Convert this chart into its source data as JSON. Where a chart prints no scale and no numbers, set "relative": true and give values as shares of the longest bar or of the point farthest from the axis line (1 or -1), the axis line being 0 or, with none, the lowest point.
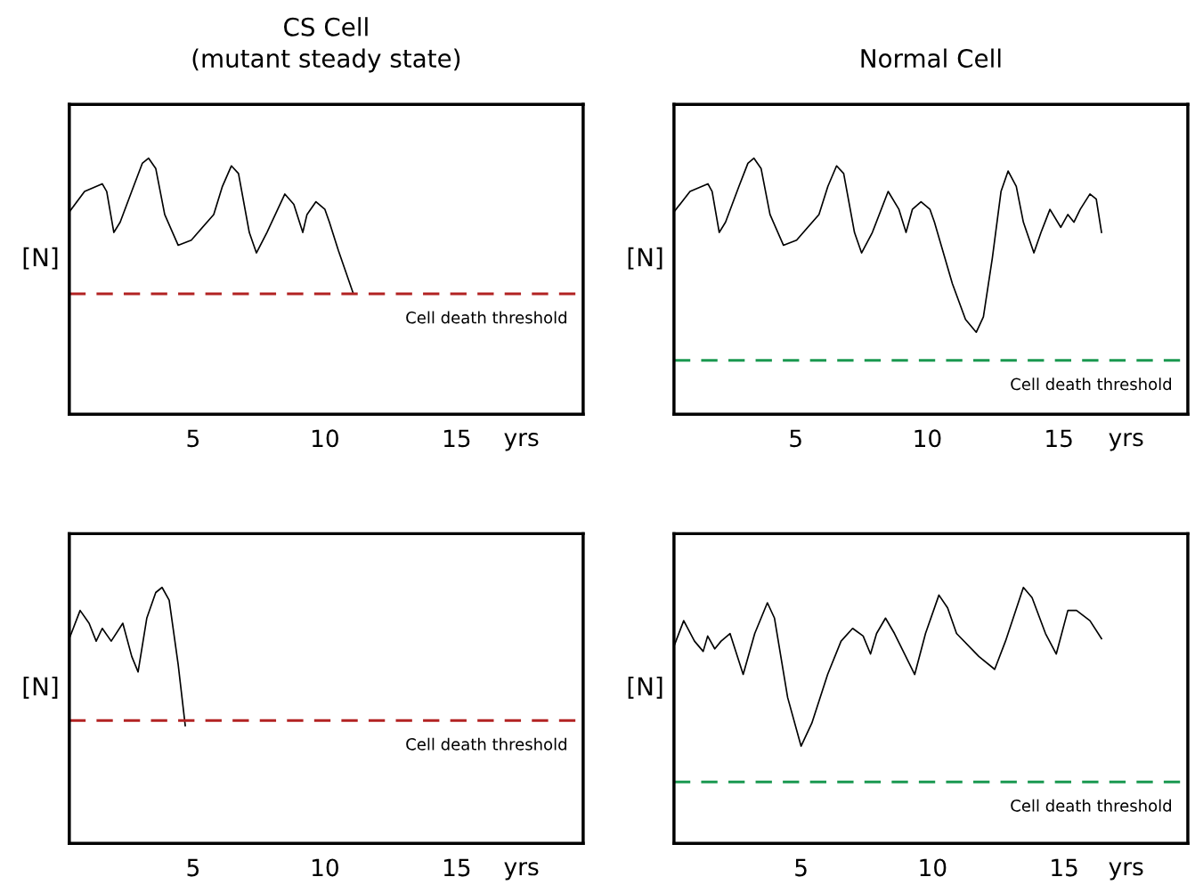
{
  "chart_data": [
    {
      "type": "line",
      "title": "CS Cell\n(mutant steady state)",
      "ylabel": "[N]",
      "xlabel": "yrs",
      "relative": true,
      "xlim": [
        0.3,
        19.8
      ],
      "xticks": [
        5,
        10,
        15
      ],
      "grid": false,
      "marker": "none",
      "line_style": "solid",
      "series": [
        {
          "color": "#000000",
          "x": [
            0.3,
            0.88,
            1.55,
            1.72,
            1.99,
            2.23,
            2.74,
            3.07,
            3.31,
            3.58,
            3.92,
            4.43,
            4.93,
            5.78,
            6.11,
            6.45,
            6.72,
            7.13,
            7.4,
            7.8,
            8.48,
            8.82,
            9.16,
            9.32,
            9.66,
            10.0,
            10.17,
            10.51,
            11.08
          ],
          "values": [
            0.79,
            0.87,
            0.9,
            0.87,
            0.71,
            0.75,
            0.89,
            0.98,
            1.0,
            0.96,
            0.78,
            0.66,
            0.68,
            0.78,
            0.89,
            0.97,
            0.94,
            0.71,
            0.63,
            0.71,
            0.86,
            0.82,
            0.71,
            0.78,
            0.83,
            0.8,
            0.75,
            0.64,
            0.47
          ]
        }
      ],
      "ref_lines": [
        {
          "axis": "y",
          "value": 0.47,
          "label": "Cell death threshold",
          "color": "#b22222",
          "line_style": "dashed"
        }
      ]
    },
    {
      "type": "line",
      "title": "Normal Cell",
      "ylabel": "[N]",
      "xlabel": "yrs",
      "relative": true,
      "xlim": [
        0.37,
        19.9
      ],
      "xticks": [
        5,
        10,
        15
      ],
      "grid": false,
      "marker": "none",
      "line_style": "solid",
      "series": [
        {
          "color": "#000000",
          "x": [
            0.37,
            0.98,
            1.66,
            1.82,
            2.09,
            2.33,
            2.84,
            3.18,
            3.41,
            3.68,
            4.02,
            4.53,
            5.03,
            5.88,
            6.22,
            6.55,
            6.82,
            7.23,
            7.5,
            7.91,
            8.51,
            8.92,
            9.19,
            9.43,
            9.76,
            10.1,
            10.27,
            10.95,
            11.45,
            11.86,
            12.13,
            12.47,
            12.8,
            13.07,
            13.38,
            13.65,
            14.05,
            14.32,
            14.66,
            15.07,
            15.34,
            15.57,
            15.81,
            16.18,
            16.42,
            16.62
          ],
          "values": [
            0.79,
            0.87,
            0.9,
            0.87,
            0.71,
            0.75,
            0.89,
            0.98,
            1.0,
            0.96,
            0.78,
            0.66,
            0.68,
            0.78,
            0.89,
            0.97,
            0.94,
            0.71,
            0.63,
            0.71,
            0.87,
            0.8,
            0.71,
            0.8,
            0.83,
            0.8,
            0.75,
            0.51,
            0.37,
            0.32,
            0.38,
            0.61,
            0.87,
            0.95,
            0.89,
            0.75,
            0.63,
            0.71,
            0.8,
            0.73,
            0.78,
            0.75,
            0.8,
            0.86,
            0.84,
            0.71
          ]
        }
      ],
      "ref_lines": [
        {
          "axis": "y",
          "value": 0.21,
          "label": "Cell death threshold",
          "color": "#1a9850",
          "line_style": "dashed"
        }
      ]
    },
    {
      "type": "line",
      "ylabel": "[N]",
      "xlabel": "yrs",
      "relative": true,
      "xlim": [
        0.3,
        19.8
      ],
      "xticks": [
        5,
        10,
        15
      ],
      "grid": false,
      "marker": "none",
      "line_style": "solid",
      "series": [
        {
          "color": "#000000",
          "x": [
            0.3,
            0.71,
            1.05,
            1.32,
            1.55,
            1.89,
            2.33,
            2.67,
            2.91,
            3.24,
            3.58,
            3.82,
            4.09,
            4.43,
            4.7
          ],
          "values": [
            0.8,
            0.91,
            0.86,
            0.79,
            0.84,
            0.79,
            0.86,
            0.73,
            0.67,
            0.88,
            0.98,
            1.0,
            0.95,
            0.7,
            0.46
          ]
        }
      ],
      "ref_lines": [
        {
          "axis": "y",
          "value": 0.48,
          "label": "Cell death threshold",
          "color": "#b22222",
          "line_style": "dashed"
        }
      ]
    },
    {
      "type": "line",
      "ylabel": "[N]",
      "xlabel": "yrs",
      "relative": true,
      "xlim": [
        0.17,
        19.7
      ],
      "xticks": [
        5,
        10,
        15
      ],
      "grid": false,
      "marker": "none",
      "line_style": "solid",
      "series": [
        {
          "color": "#000000",
          "x": [
            0.17,
            0.54,
            0.95,
            1.28,
            1.45,
            1.72,
            1.96,
            2.3,
            2.8,
            3.24,
            3.72,
            3.99,
            4.49,
            5.0,
            5.41,
            6.01,
            6.52,
            6.96,
            7.36,
            7.64,
            7.87,
            8.21,
            8.55,
            9.32,
            9.73,
            10.24,
            10.57,
            10.91,
            11.76,
            12.36,
            12.77,
            13.45,
            13.78,
            14.29,
            14.7,
            15.14,
            15.47,
            15.98,
            16.42
          ],
          "values": [
            0.77,
            0.87,
            0.79,
            0.75,
            0.81,
            0.76,
            0.79,
            0.82,
            0.66,
            0.82,
            0.94,
            0.88,
            0.57,
            0.38,
            0.47,
            0.66,
            0.79,
            0.84,
            0.81,
            0.74,
            0.82,
            0.88,
            0.82,
            0.66,
            0.82,
            0.97,
            0.92,
            0.82,
            0.73,
            0.68,
            0.79,
            1.0,
            0.96,
            0.82,
            0.74,
            0.91,
            0.91,
            0.87,
            0.8
          ]
        }
      ],
      "ref_lines": [
        {
          "axis": "y",
          "value": 0.24,
          "label": "Cell death threshold",
          "color": "#1a9850",
          "line_style": "dashed"
        }
      ]
    }
  ]
}
